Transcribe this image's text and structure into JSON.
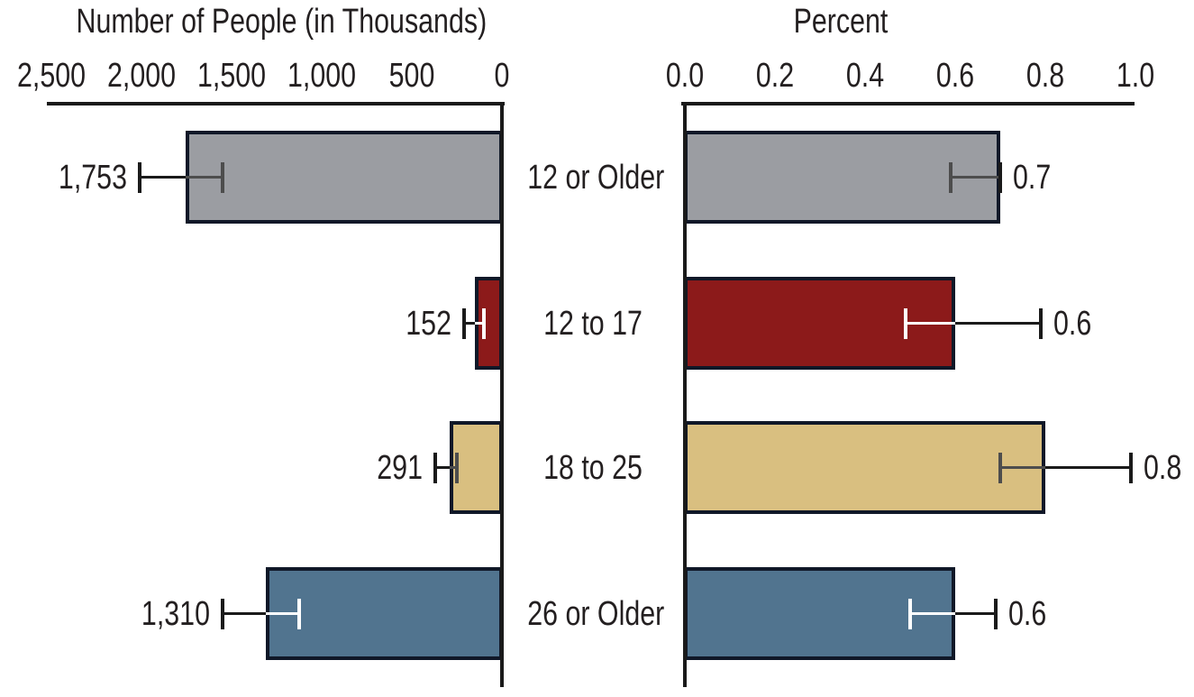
{
  "chart_data": {
    "type": "bar",
    "orientation": "horizontal",
    "description": "Paired horizontal bar chart by age group with error bars (confidence intervals); left panel axis reversed",
    "categories": [
      "12 or Older",
      "12 to 17",
      "18 to 25",
      "26 or Older"
    ],
    "panels": [
      {
        "title": "Number of People (in Thousands)",
        "position": "left",
        "axis_reversed": true,
        "xlim": [
          0,
          2500
        ],
        "tick_labels": [
          "2,500",
          "2,000",
          "1,500",
          "1,000",
          "500",
          "0"
        ],
        "tick_values": [
          2500,
          2000,
          1500,
          1000,
          500,
          0
        ],
        "values": [
          1753,
          152,
          291,
          1310
        ],
        "value_labels": [
          "1,753",
          "152",
          "291",
          "1,310"
        ],
        "error_low": [
          1550,
          100,
          250,
          1125
        ],
        "error_high": [
          2010,
          210,
          370,
          1550
        ]
      },
      {
        "title": "Percent",
        "position": "right",
        "axis_reversed": false,
        "xlim": [
          0,
          1.0
        ],
        "tick_labels": [
          "0.0",
          "0.2",
          "0.4",
          "0.6",
          "0.8",
          "1.0"
        ],
        "tick_values": [
          0,
          0.2,
          0.4,
          0.6,
          0.8,
          1.0
        ],
        "values": [
          0.7,
          0.6,
          0.8,
          0.6
        ],
        "value_labels": [
          "0.7",
          "0.6",
          "0.8",
          "0.6"
        ],
        "error_low": [
          0.59,
          0.49,
          0.7,
          0.5
        ],
        "error_high": [
          0.7,
          0.79,
          0.99,
          0.69
        ]
      }
    ],
    "colors": {
      "bar_fills": [
        "#9b9da2",
        "#8c1a1a",
        "#d9bf80",
        "#51748f"
      ],
      "bar_border": "#101828",
      "error_outer": "#1a1a1a",
      "error_inner": [
        "#4d4d4d",
        "#ffffff",
        "#4d4d4d",
        "#ffffff"
      ],
      "axis": "#1a1a1a",
      "text": "#231f20",
      "background": "#ffffff"
    },
    "legend": "none",
    "grid": false
  }
}
